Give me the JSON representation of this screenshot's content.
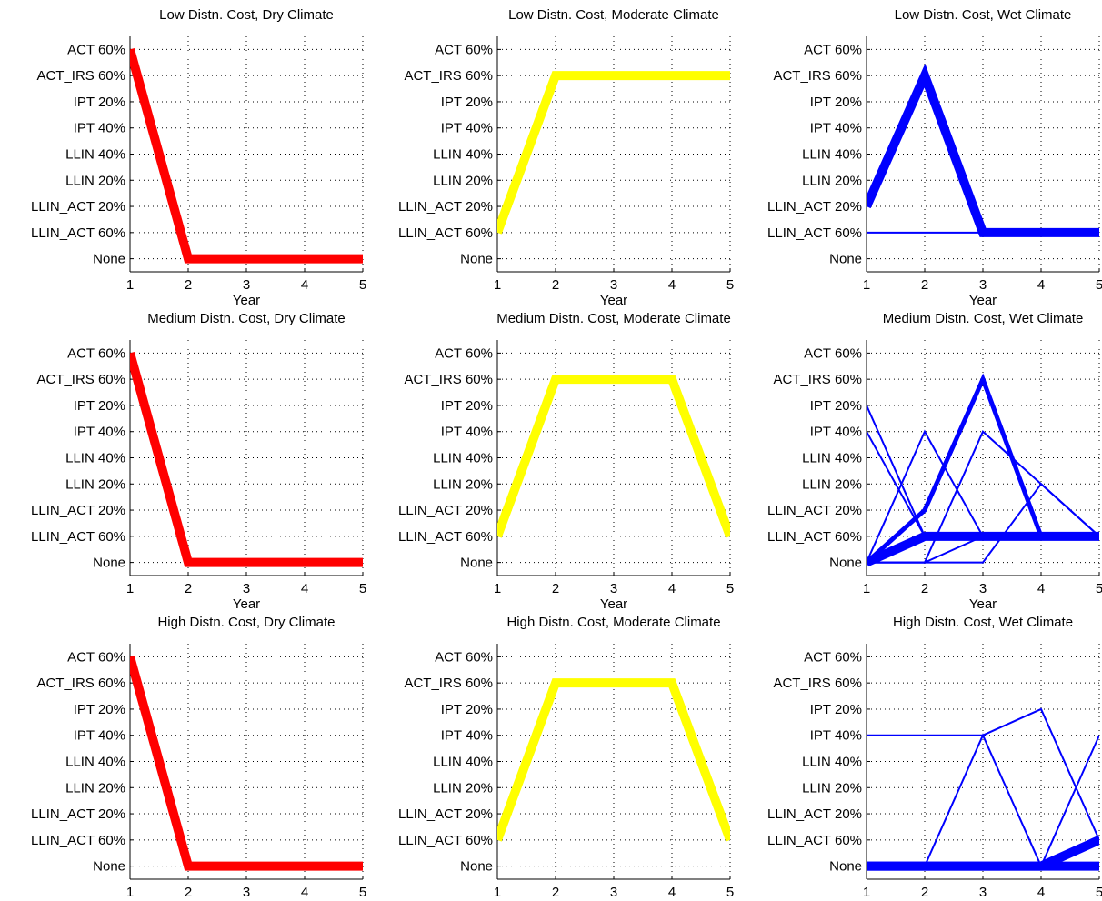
{
  "colors": {
    "dry": "#ff0000",
    "moderate": "#ffff00",
    "wet": "#0000ff",
    "grid": "#000000",
    "axis": "#000000"
  },
  "figure": {
    "y_categories": [
      "None",
      "LLIN_ACT 60%",
      "LLIN_ACT 20%",
      "LLIN 20%",
      "LLIN 40%",
      "IPT 40%",
      "IPT 20%",
      "ACT_IRS 60%",
      "ACT 60%"
    ],
    "x_ticks": [
      "1",
      "2",
      "3",
      "4",
      "5"
    ],
    "xlabel": "Year",
    "grid": "dotted"
  },
  "chart_data": [
    {
      "type": "line",
      "title": "Low Distn. Cost, Dry Climate",
      "xlabel": "Year",
      "xlim": [
        1,
        5
      ],
      "ylim": [
        -0.5,
        8.5
      ],
      "color": "#ff0000",
      "series": [
        {
          "x": [
            1,
            2,
            3,
            4,
            5
          ],
          "y": [
            "ACT 60%",
            "None",
            "None",
            "None",
            "None"
          ],
          "weight": "heavy"
        }
      ]
    },
    {
      "type": "line",
      "title": "Low Distn. Cost, Moderate Climate",
      "xlabel": "Year",
      "xlim": [
        1,
        5
      ],
      "ylim": [
        -0.5,
        8.5
      ],
      "color": "#ffff00",
      "series": [
        {
          "x": [
            1,
            2,
            3,
            4,
            5
          ],
          "y": [
            "LLIN_ACT 60%",
            "ACT_IRS 60%",
            "ACT_IRS 60%",
            "ACT_IRS 60%",
            "ACT_IRS 60%"
          ],
          "weight": "heavy"
        }
      ]
    },
    {
      "type": "line",
      "title": "Low Distn. Cost, Wet Climate",
      "xlabel": "Year",
      "xlim": [
        1,
        5
      ],
      "ylim": [
        -0.5,
        8.5
      ],
      "color": "#0000ff",
      "series": [
        {
          "x": [
            1,
            2,
            3,
            4,
            5
          ],
          "y": [
            "LLIN_ACT 20%",
            "ACT_IRS 60%",
            "LLIN_ACT 60%",
            "LLIN_ACT 60%",
            "LLIN_ACT 60%"
          ],
          "weight": "heavy"
        },
        {
          "x": [
            1,
            2,
            3,
            4,
            5
          ],
          "y": [
            "LLIN_ACT 60%",
            "LLIN_ACT 60%",
            "LLIN_ACT 60%",
            "LLIN_ACT 60%",
            "LLIN_ACT 60%"
          ],
          "weight": "thin"
        }
      ]
    },
    {
      "type": "line",
      "title": "Medium Distn. Cost, Dry Climate",
      "xlabel": "Year",
      "xlim": [
        1,
        5
      ],
      "ylim": [
        -0.5,
        8.5
      ],
      "color": "#ff0000",
      "series": [
        {
          "x": [
            1,
            2,
            3,
            4,
            5
          ],
          "y": [
            "ACT 60%",
            "None",
            "None",
            "None",
            "None"
          ],
          "weight": "heavy"
        }
      ]
    },
    {
      "type": "line",
      "title": "Medium Distn. Cost, Moderate Climate",
      "xlabel": "Year",
      "xlim": [
        1,
        5
      ],
      "ylim": [
        -0.5,
        8.5
      ],
      "color": "#ffff00",
      "series": [
        {
          "x": [
            1,
            2,
            3,
            4,
            5
          ],
          "y": [
            "LLIN_ACT 60%",
            "ACT_IRS 60%",
            "ACT_IRS 60%",
            "ACT_IRS 60%",
            "LLIN_ACT 60%"
          ],
          "weight": "heavy"
        }
      ]
    },
    {
      "type": "line",
      "title": "Medium Distn. Cost, Wet Climate",
      "xlabel": "Year",
      "xlim": [
        1,
        5
      ],
      "ylim": [
        -0.5,
        8.5
      ],
      "color": "#0000ff",
      "series": [
        {
          "x": [
            1,
            2,
            3,
            4,
            5
          ],
          "y": [
            "None",
            "LLIN_ACT 20%",
            "ACT_IRS 60%",
            "LLIN_ACT 60%",
            "LLIN_ACT 60%"
          ],
          "weight": "medium"
        },
        {
          "x": [
            1,
            2,
            3,
            4,
            5
          ],
          "y": [
            "None",
            "LLIN_ACT 60%",
            "LLIN_ACT 60%",
            "LLIN_ACT 60%",
            "LLIN_ACT 60%"
          ],
          "weight": "heavy"
        },
        {
          "x": [
            1,
            2,
            3,
            4,
            5
          ],
          "y": [
            "IPT 20%",
            "LLIN_ACT 60%",
            "LLIN_ACT 60%",
            "LLIN_ACT 60%",
            "LLIN_ACT 60%"
          ],
          "weight": "thin"
        },
        {
          "x": [
            1,
            2,
            3,
            4,
            5
          ],
          "y": [
            "IPT 40%",
            "LLIN_ACT 60%",
            "LLIN_ACT 60%",
            "LLIN_ACT 60%",
            "LLIN_ACT 60%"
          ],
          "weight": "thin"
        },
        {
          "x": [
            1,
            2,
            3,
            4,
            5
          ],
          "y": [
            "None",
            "IPT 40%",
            "LLIN_ACT 60%",
            "LLIN_ACT 60%",
            "LLIN_ACT 60%"
          ],
          "weight": "thin"
        },
        {
          "x": [
            1,
            2,
            3,
            4,
            5
          ],
          "y": [
            "None",
            "None",
            "IPT 40%",
            "LLIN 20%",
            "LLIN_ACT 60%"
          ],
          "weight": "thin"
        },
        {
          "x": [
            1,
            2,
            3,
            4,
            5
          ],
          "y": [
            "None",
            "None",
            "None",
            "LLIN 20%",
            "LLIN_ACT 60%"
          ],
          "weight": "thin"
        },
        {
          "x": [
            1,
            2,
            3,
            4,
            5
          ],
          "y": [
            "None",
            "None",
            "LLIN_ACT 60%",
            "LLIN_ACT 60%",
            "LLIN_ACT 60%"
          ],
          "weight": "thin"
        }
      ]
    },
    {
      "type": "line",
      "title": "High Distn. Cost, Dry Climate",
      "xlabel": "Year",
      "xlim": [
        1,
        5
      ],
      "ylim": [
        -0.5,
        8.5
      ],
      "color": "#ff0000",
      "series": [
        {
          "x": [
            1,
            2,
            3,
            4,
            5
          ],
          "y": [
            "ACT 60%",
            "None",
            "None",
            "None",
            "None"
          ],
          "weight": "heavy"
        }
      ]
    },
    {
      "type": "line",
      "title": "High Distn. Cost, Moderate Climate",
      "xlabel": "Year",
      "xlim": [
        1,
        5
      ],
      "ylim": [
        -0.5,
        8.5
      ],
      "color": "#ffff00",
      "series": [
        {
          "x": [
            1,
            2,
            3,
            4,
            5
          ],
          "y": [
            "LLIN_ACT 60%",
            "ACT_IRS 60%",
            "ACT_IRS 60%",
            "ACT_IRS 60%",
            "LLIN_ACT 60%"
          ],
          "weight": "heavy"
        }
      ]
    },
    {
      "type": "line",
      "title": "High Distn. Cost, Wet Climate",
      "xlabel": "Year",
      "xlim": [
        1,
        5
      ],
      "ylim": [
        -0.5,
        8.5
      ],
      "color": "#0000ff",
      "series": [
        {
          "x": [
            1,
            2,
            3,
            4,
            5
          ],
          "y": [
            "None",
            "None",
            "None",
            "None",
            "None"
          ],
          "weight": "heavy"
        },
        {
          "x": [
            1,
            2,
            3,
            4,
            5
          ],
          "y": [
            "None",
            "None",
            "None",
            "None",
            "LLIN_ACT 60%"
          ],
          "weight": "heavy"
        },
        {
          "x": [
            1,
            2,
            3,
            4,
            5
          ],
          "y": [
            "IPT 40%",
            "IPT 40%",
            "IPT 40%",
            "IPT 20%",
            "LLIN_ACT 60%"
          ],
          "weight": "thin"
        },
        {
          "x": [
            1,
            2,
            3,
            4,
            5
          ],
          "y": [
            "None",
            "None",
            "IPT 40%",
            "None",
            "IPT 40%"
          ],
          "weight": "thin"
        }
      ]
    }
  ]
}
